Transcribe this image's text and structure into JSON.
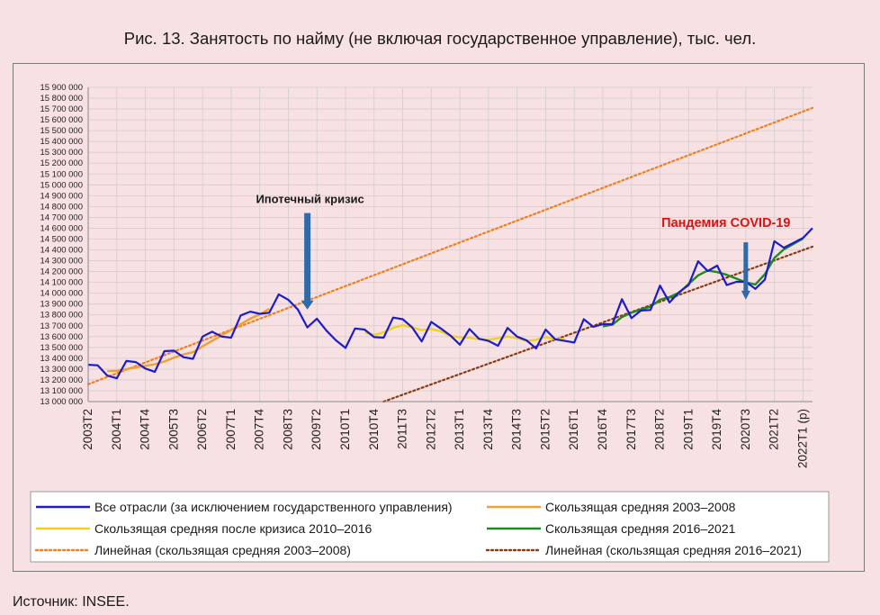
{
  "figure_title": "Рис. 13. Занятость по найму (не включая государственное управление), тыс. чел.",
  "source": "Источник: INSEE.",
  "chart_data": {
    "type": "line",
    "title": "Рис. 13. Занятость по найму (не включая государственное управление), тыс. чел.",
    "xlabel": "",
    "ylabel": "",
    "ylim": [
      13000000,
      15900000
    ],
    "ytick_step": 100000,
    "y_tick_labels": [
      "13 000 000",
      "13 100 000",
      "13 200 000",
      "13 300 000",
      "13 400 000",
      "13 500 000",
      "13 600 000",
      "13 700 000",
      "13 800 000",
      "13 900 000",
      "14 000 000",
      "14 100 000",
      "14 200 000",
      "14 300 000",
      "14 400 000",
      "14 500 000",
      "14 600 000",
      "14 700 000",
      "14 800 000",
      "14 900 000",
      "15 000 000",
      "15 100 000",
      "15 200 000",
      "15 300 000",
      "15 400 000",
      "15 500 000",
      "15 600 000",
      "15 700 000",
      "15 800 000",
      "15 900 000"
    ],
    "x_range": [
      0,
      76
    ],
    "x_tick_labels": [
      "2003T2",
      "2004T1",
      "2004T4",
      "2005T3",
      "2006T2",
      "2007T1",
      "2007T4",
      "2008T3",
      "2009T2",
      "2010T1",
      "2010T4",
      "2011T3",
      "2012T2",
      "2013T1",
      "2013T4",
      "2014T3",
      "2015T2",
      "2016T1",
      "2016T4",
      "2017T3",
      "2018T2",
      "2019T1",
      "2019T4",
      "2020T3",
      "2021T2",
      "2022T1 (p)"
    ],
    "x_tick_index": [
      0,
      3,
      6,
      9,
      12,
      15,
      18,
      21,
      24,
      27,
      30,
      33,
      36,
      39,
      42,
      45,
      48,
      51,
      54,
      57,
      60,
      63,
      66,
      69,
      72,
      75
    ],
    "grid": true,
    "legend_position": "bottom",
    "series": [
      {
        "name": "Все отрасли (за исключением государственного управления)",
        "color": "#1c1ccc",
        "style": "solid",
        "x": [
          0,
          1,
          2,
          3,
          4,
          5,
          6,
          7,
          8,
          9,
          10,
          11,
          12,
          13,
          14,
          15,
          16,
          17,
          18,
          19,
          20,
          21,
          22,
          23,
          24,
          25,
          26,
          27,
          28,
          29,
          30,
          31,
          32,
          33,
          34,
          35,
          36,
          37,
          38,
          39,
          40,
          41,
          42,
          43,
          44,
          45,
          46,
          47,
          48,
          49,
          50,
          51,
          52,
          53,
          54,
          55,
          56,
          57,
          58,
          59,
          60,
          61,
          62,
          63,
          64,
          65,
          66,
          67,
          68,
          69,
          70,
          71,
          72,
          73,
          74,
          75,
          76
        ],
        "values": [
          13340000,
          13335000,
          13240000,
          13215000,
          13375000,
          13365000,
          13305000,
          13275000,
          13465000,
          13470000,
          13410000,
          13395000,
          13600000,
          13645000,
          13600000,
          13590000,
          13795000,
          13830000,
          13810000,
          13820000,
          13990000,
          13940000,
          13850000,
          13685000,
          13765000,
          13655000,
          13565000,
          13495000,
          13675000,
          13665000,
          13595000,
          13590000,
          13775000,
          13760000,
          13685000,
          13555000,
          13735000,
          13675000,
          13610000,
          13525000,
          13670000,
          13580000,
          13560000,
          13515000,
          13680000,
          13600000,
          13565000,
          13490000,
          13665000,
          13575000,
          13560000,
          13545000,
          13760000,
          13690000,
          13715000,
          13715000,
          13945000,
          13770000,
          13840000,
          13845000,
          14070000,
          13915000,
          14010000,
          14075000,
          14295000,
          14205000,
          14255000,
          14075000,
          14105000,
          14105000,
          14040000,
          14125000,
          14480000,
          14420000,
          14465000,
          14510000,
          14600000
        ]
      },
      {
        "name": "Скользящая средняя 2003–2008",
        "color": "#f0a030",
        "style": "solid",
        "x": [
          2,
          3,
          4,
          5,
          6,
          7,
          8,
          9,
          10,
          11,
          12,
          13,
          14,
          15,
          16,
          17,
          18,
          19
        ],
        "values": [
          13282000,
          13284000,
          13300000,
          13315000,
          13330000,
          13345000,
          13370000,
          13405000,
          13435000,
          13455000,
          13510000,
          13560000,
          13610000,
          13660000,
          13715000,
          13765000,
          13805000,
          13855000
        ]
      },
      {
        "name": "Скользящая средняя после кризиса 2010–2016",
        "color": "#f0d020",
        "style": "solid",
        "x": [
          29,
          30,
          31,
          32,
          33,
          34,
          35,
          36,
          37,
          38,
          39,
          40,
          41,
          42,
          43,
          44,
          45,
          46,
          47,
          48,
          49,
          50
        ],
        "values": [
          13640000,
          13615000,
          13640000,
          13680000,
          13705000,
          13685000,
          13660000,
          13670000,
          13650000,
          13605000,
          13595000,
          13590000,
          13575000,
          13570000,
          13585000,
          13600000,
          13585000,
          13560000,
          13570000,
          13595000,
          13575000,
          13580000
        ]
      },
      {
        "name": "Скользящая средняя 2016–2021",
        "color": "#1f8a1f",
        "style": "solid",
        "x": [
          54,
          55,
          56,
          57,
          58,
          59,
          60,
          61,
          62,
          63,
          64,
          65,
          66,
          67,
          68,
          69,
          70,
          71,
          72,
          73,
          74,
          75
        ],
        "values": [
          13695000,
          13710000,
          13780000,
          13820000,
          13850000,
          13875000,
          13940000,
          13965000,
          14005000,
          14085000,
          14165000,
          14210000,
          14195000,
          14170000,
          14135000,
          14100000,
          14080000,
          14175000,
          14325000,
          14405000,
          14455000,
          14505000
        ]
      },
      {
        "name": "Линейная (скользящая средняя 2003–2008)",
        "color": "#f07f20",
        "style": "dotted",
        "trend_endpoints_x": [
          0,
          76
        ],
        "trend_endpoints_y": [
          13160000,
          15710000
        ]
      },
      {
        "name": "Линейная (скользящая средняя 2016–2021)",
        "color": "#8b3a12",
        "style": "dotted",
        "trend_endpoints_x": [
          31,
          76
        ],
        "trend_endpoints_y": [
          13000000,
          14430000
        ]
      }
    ],
    "annotations": [
      {
        "text": "Ипотечный кризис",
        "color": "#1a1a1a",
        "arrow_x": 23,
        "arrow_from_y": 14740000,
        "arrow_to_y": 13850000,
        "arrow_color": "#2e6ba8"
      },
      {
        "text": "Пандемия COVID-19",
        "color": "#e01010",
        "arrow_x": 69,
        "arrow_from_y": 14470000,
        "arrow_to_y": 13940000,
        "arrow_color": "#2e6ba8"
      }
    ]
  }
}
